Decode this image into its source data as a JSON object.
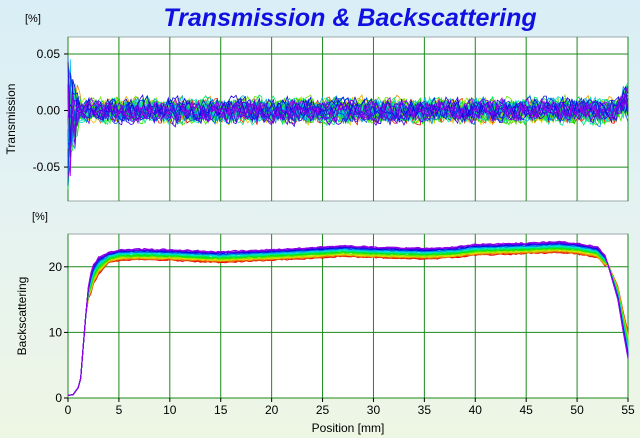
{
  "title": "Transmission & Backscattering",
  "chart_data": [
    {
      "type": "line",
      "name": "transmission",
      "unit_label": "[%]",
      "ylabel": "Transmission",
      "xlabel": "",
      "xlim": [
        0,
        55
      ],
      "ylim": [
        -0.08,
        0.065
      ],
      "x_ticks": [
        "0",
        "5",
        "10",
        "15",
        "20",
        "25",
        "30",
        "35",
        "40",
        "45",
        "50",
        "55"
      ],
      "y_ticks": [
        {
          "value": 0.05,
          "label": "0.05"
        },
        {
          "value": 0.0,
          "label": "0.00"
        },
        {
          "value": -0.05,
          "label": "-0.05"
        }
      ],
      "grid": true,
      "series_count": 40,
      "series_colors": "rainbow (red to violet, overlapping noisy scans)",
      "baseline": 0.0,
      "noise_amplitude": 0.012,
      "edge_spikes": [
        {
          "x": 0.3,
          "y_min": -0.065,
          "y_max": 0.05
        },
        {
          "x": 55,
          "y_min": -0.01,
          "y_max": 0.028
        }
      ]
    },
    {
      "type": "line",
      "name": "backscattering",
      "unit_label": "[%]",
      "ylabel": "Backscattering",
      "xlabel": "Position [mm]",
      "xlim": [
        0,
        55
      ],
      "ylim": [
        0,
        25
      ],
      "x_ticks": [
        "0",
        "5",
        "10",
        "15",
        "20",
        "25",
        "30",
        "35",
        "40",
        "45",
        "50",
        "55"
      ],
      "y_ticks": [
        {
          "value": 20,
          "label": "20"
        },
        {
          "value": 10,
          "label": "10"
        },
        {
          "value": 0,
          "label": "0"
        }
      ],
      "grid": true,
      "series_count": 30,
      "series_colors": "rainbow (red to violet)",
      "profile_x": [
        0,
        0.5,
        1.2,
        1.6,
        2,
        2.5,
        3,
        4,
        5,
        7,
        10,
        15,
        20,
        25,
        27,
        30,
        35,
        38,
        40,
        45,
        48,
        50,
        52,
        53,
        54,
        54.6,
        55
      ],
      "profile_y": [
        0.4,
        0.5,
        2,
        10,
        17,
        19.5,
        20.6,
        21.4,
        21.8,
        21.9,
        21.8,
        21.5,
        21.8,
        22.2,
        22.4,
        22.2,
        22.0,
        22.2,
        22.6,
        22.8,
        23.0,
        22.8,
        22.2,
        20.5,
        16,
        11,
        8
      ]
    }
  ]
}
